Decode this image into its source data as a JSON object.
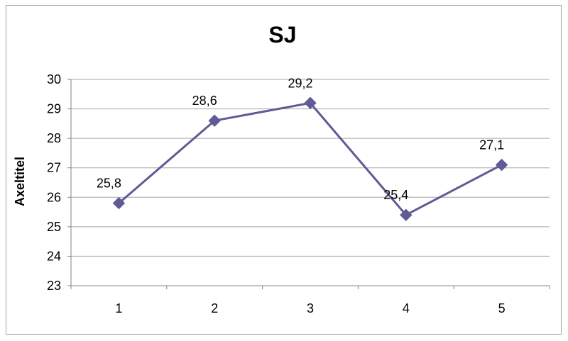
{
  "chart_data": {
    "type": "line",
    "title": "SJ",
    "xlabel": "",
    "ylabel": "Axeltitel",
    "categories": [
      "1",
      "2",
      "3",
      "4",
      "5"
    ],
    "series": [
      {
        "values": [
          25.8,
          28.6,
          29.2,
          25.4,
          27.1
        ],
        "color": "#5e5b95",
        "marker": "diamond"
      }
    ],
    "data_labels": [
      "25,8",
      "28,6",
      "29,2",
      "25,4",
      "27,1"
    ],
    "ylim": [
      23,
      30
    ],
    "yticks": [
      "23",
      "24",
      "25",
      "26",
      "27",
      "28",
      "29",
      "30"
    ],
    "grid": true,
    "legend": "none"
  }
}
